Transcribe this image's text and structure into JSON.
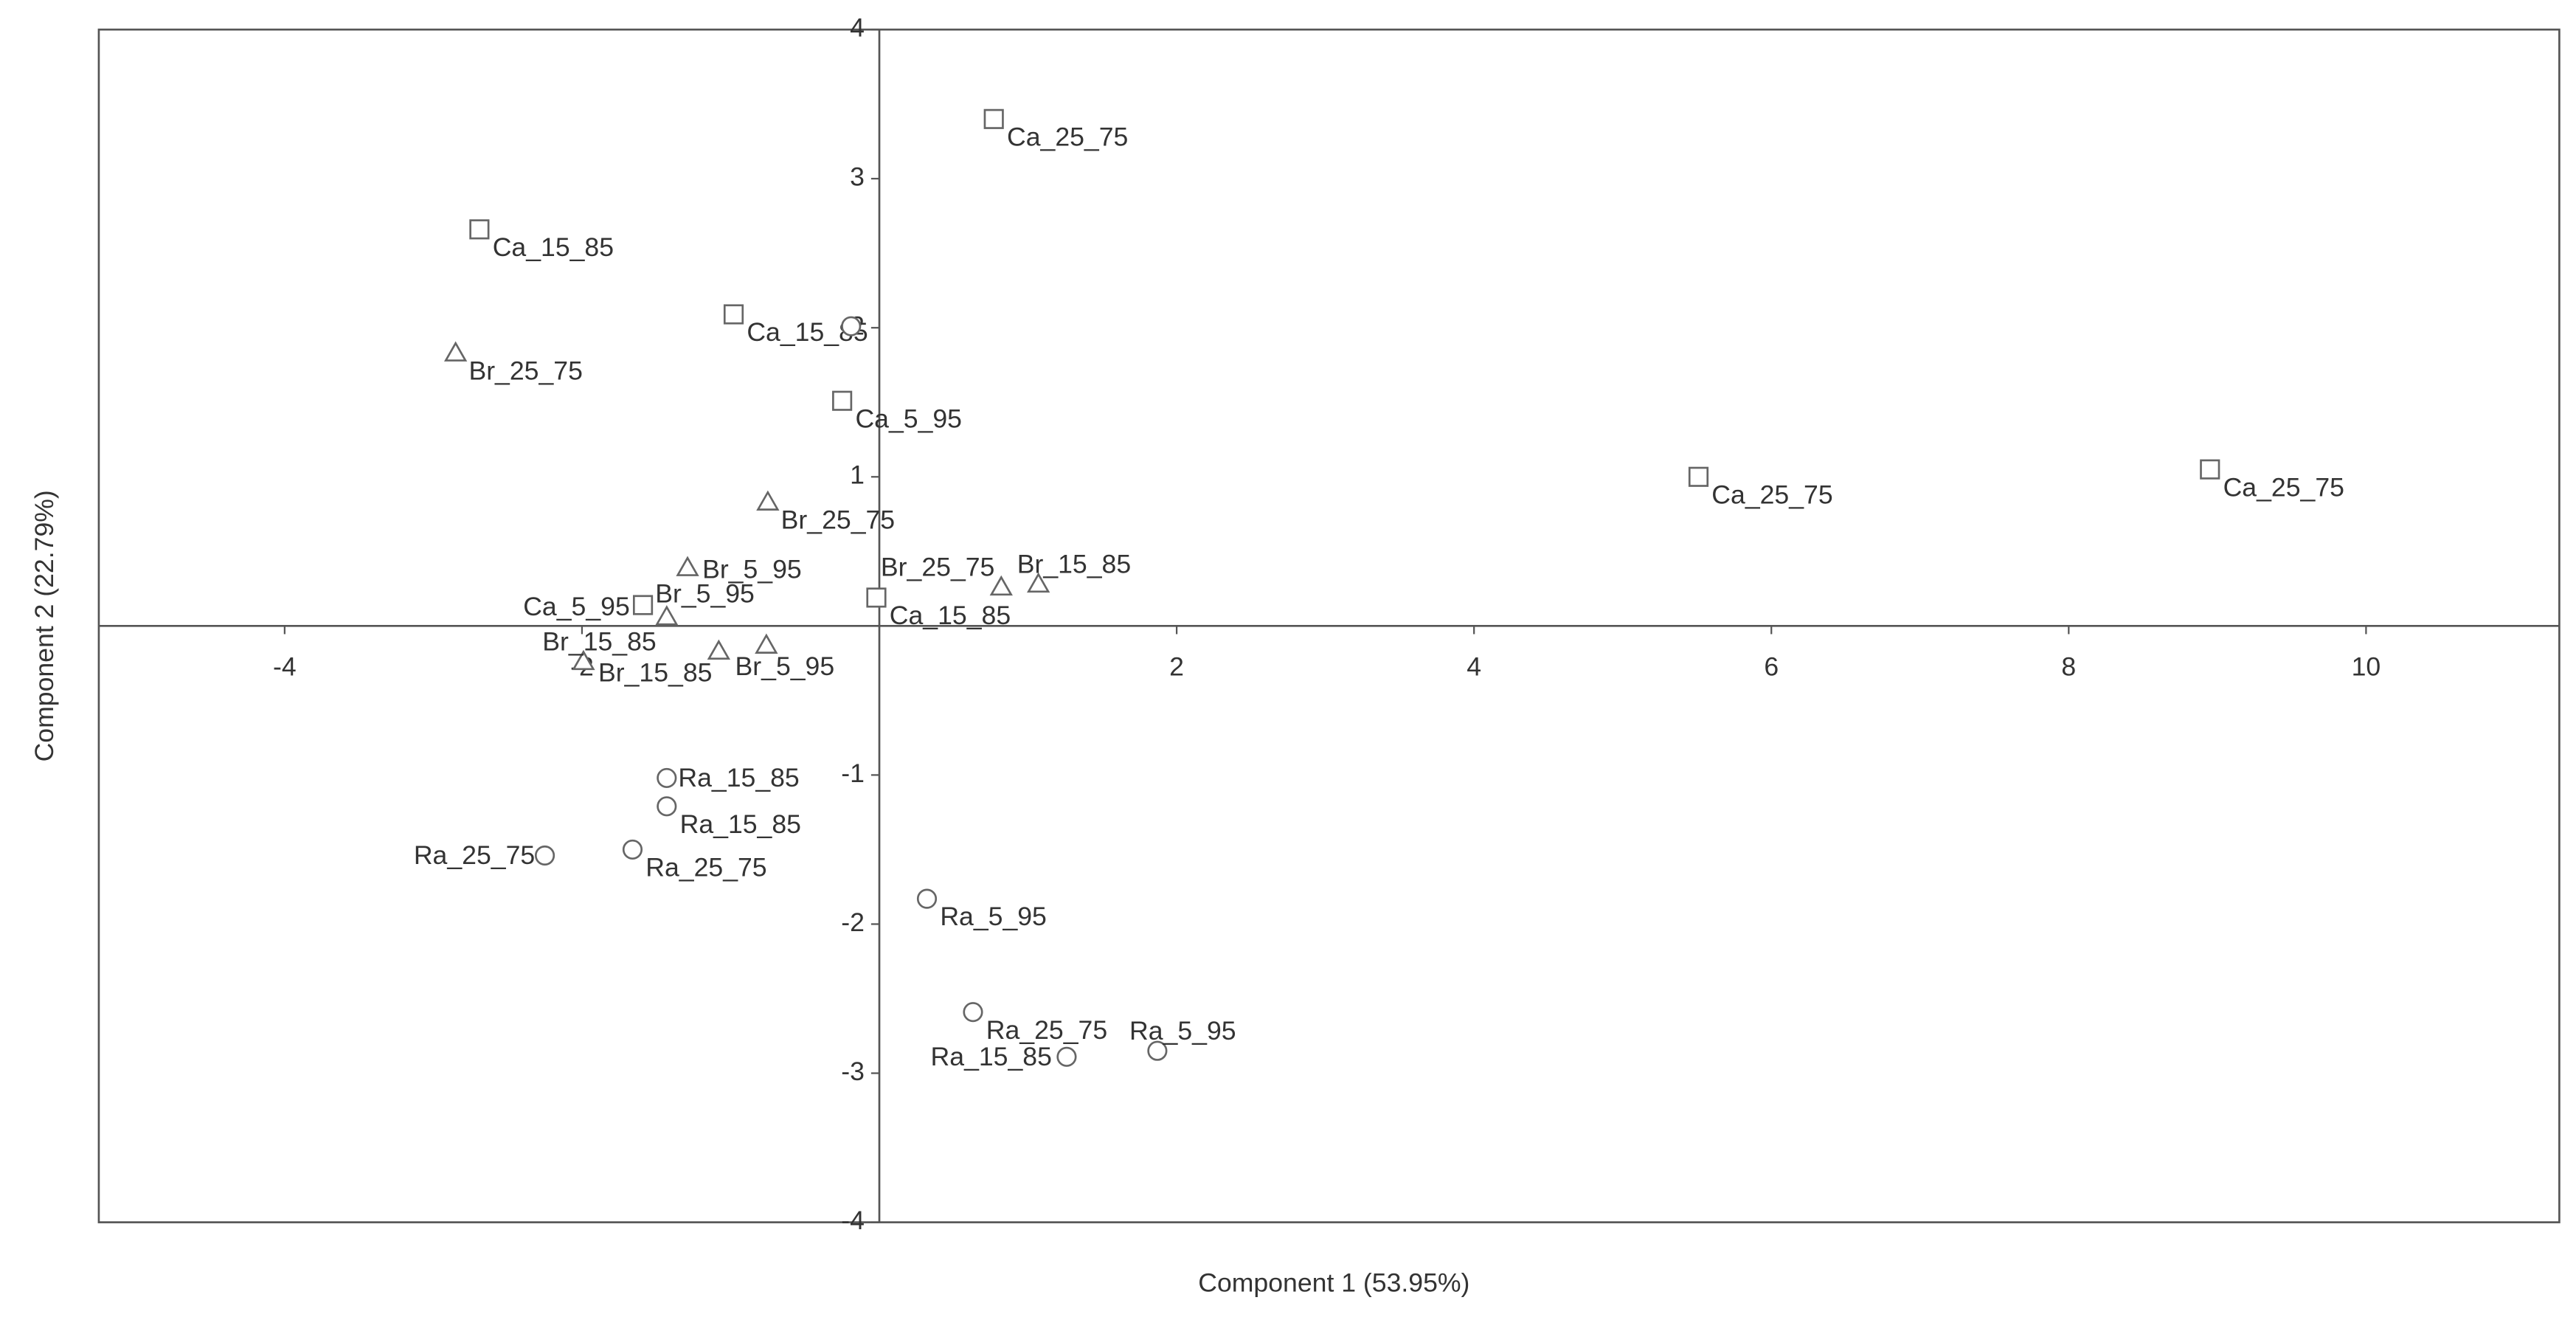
{
  "chart_data": {
    "type": "scatter",
    "x_label": "Component 1 (53.95%)",
    "y_label": "Component 2 (22.79%)",
    "xlim": [
      -5.25,
      11.3
    ],
    "ylim": [
      -4,
      4
    ],
    "xticks": [
      -4,
      -2,
      2,
      4,
      6,
      8,
      10
    ],
    "yticks": [
      -4,
      -3,
      -2,
      -1,
      1,
      2,
      3,
      4
    ],
    "color": "#666666",
    "series": [
      {
        "marker": "square",
        "x": [
          0.77,
          -2.69,
          -0.98,
          -0.25,
          5.51,
          8.95,
          -1.59,
          -0.02
        ],
        "values": [
          3.4,
          2.66,
          2.09,
          1.51,
          1.0,
          1.05,
          0.14,
          0.19
        ],
        "labels": [
          "Ca_25_75",
          "Ca_15_85",
          "Ca_15_85",
          "Ca_5_95",
          "Ca_25_75",
          "Ca_25_75",
          "Ca_5_95",
          "Ca_15_85"
        ]
      },
      {
        "marker": "triangle",
        "x": [
          -2.85,
          -0.75,
          -1.29,
          -1.43,
          -1.99,
          -1.08,
          -0.76,
          0.82,
          1.07
        ],
        "values": [
          1.83,
          0.83,
          0.39,
          0.06,
          -0.24,
          -0.17,
          -0.13,
          0.26,
          0.28
        ],
        "labels": [
          "Br_25_75",
          "Br_25_75",
          "Br_5_95",
          "Br_5_95",
          "Br_15_85",
          "Br_15_85",
          "Br_5_95",
          "Br_25_75",
          "Br_15_85"
        ]
      },
      {
        "marker": "circle",
        "x": [
          -1.43,
          -1.43,
          -2.25,
          -1.66,
          0.32,
          0.63,
          1.26,
          1.87,
          -0.19
        ],
        "values": [
          -1.02,
          -1.21,
          -1.54,
          -1.5,
          -1.83,
          -2.59,
          -2.89,
          -2.85,
          2.01
        ],
        "labels": [
          "Ra_15_85",
          "Ra_15_85",
          "Ra_25_75",
          "Ra_25_75",
          "Ra_5_95",
          "Ra_25_75",
          "Ra_15_85",
          "Ra_5_95",
          null
        ]
      }
    ]
  }
}
